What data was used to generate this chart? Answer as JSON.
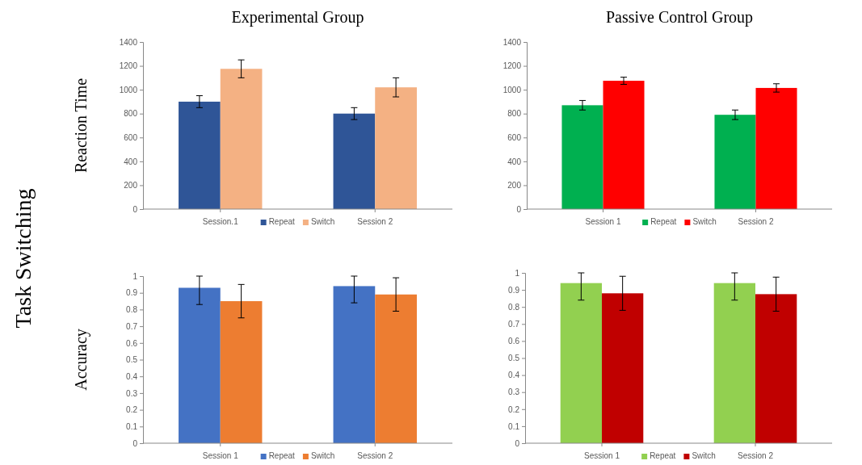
{
  "chart_data": [
    {
      "type": "bar",
      "title": "Experimental Group",
      "ylabel": "Reaction Time",
      "categories": [
        "Session.1",
        "Session 2"
      ],
      "ylim": [
        0,
        1400
      ],
      "yticks": [
        0,
        200,
        400,
        600,
        800,
        1000,
        1200,
        1400
      ],
      "legend": "bottom",
      "annotations": [
        "Task Switching"
      ],
      "series": [
        {
          "name": "Repeat",
          "color": "#2f5597",
          "values": [
            900,
            800
          ],
          "errors": [
            50,
            50
          ]
        },
        {
          "name": "Switch",
          "color": "#f4b183",
          "values": [
            1175,
            1020
          ],
          "errors": [
            75,
            80
          ]
        }
      ]
    },
    {
      "type": "bar",
      "title": "Passive Control Group",
      "categories": [
        "Session 1",
        "Session 2"
      ],
      "ylim": [
        0,
        1400
      ],
      "yticks": [
        0,
        200,
        400,
        600,
        800,
        1000,
        1200,
        1400
      ],
      "legend": "bottom",
      "series": [
        {
          "name": "Repeat",
          "color": "#00b050",
          "values": [
            870,
            790
          ],
          "errors": [
            40,
            40
          ]
        },
        {
          "name": "Switch",
          "color": "#ff0000",
          "values": [
            1075,
            1015
          ],
          "errors": [
            30,
            35
          ]
        }
      ]
    },
    {
      "type": "bar",
      "ylabel": "Accuracy",
      "categories": [
        "Session 1",
        "Session 2"
      ],
      "ylim": [
        0,
        1
      ],
      "yticks": [
        0,
        0.1,
        0.2,
        0.3,
        0.4,
        0.5,
        0.6,
        0.7,
        0.8,
        0.9,
        1
      ],
      "legend": "bottom",
      "series": [
        {
          "name": "Repeat",
          "color": "#4472c4",
          "values": [
            0.93,
            0.94
          ],
          "errors": [
            [
              0.83,
              1
            ],
            [
              0.84,
              1
            ]
          ]
        },
        {
          "name": "Switch",
          "color": "#ed7d31",
          "values": [
            0.85,
            0.89
          ],
          "errors": [
            0.1,
            0.1
          ]
        }
      ]
    },
    {
      "type": "bar",
      "categories": [
        "Session 1",
        "Session 2"
      ],
      "ylim": [
        0,
        1
      ],
      "yticks": [
        0,
        0.1,
        0.2,
        0.3,
        0.4,
        0.5,
        0.6,
        0.7,
        0.8,
        0.9,
        1
      ],
      "legend": "bottom",
      "series": [
        {
          "name": "Repeat",
          "color": "#92d050",
          "values": [
            0.94,
            0.94
          ],
          "errors": [
            [
              0.84,
              1
            ],
            [
              0.84,
              1
            ]
          ]
        },
        {
          "name": "Switch",
          "color": "#c00000",
          "values": [
            0.88,
            0.875
          ],
          "errors": [
            0.1,
            0.1
          ]
        }
      ]
    }
  ]
}
